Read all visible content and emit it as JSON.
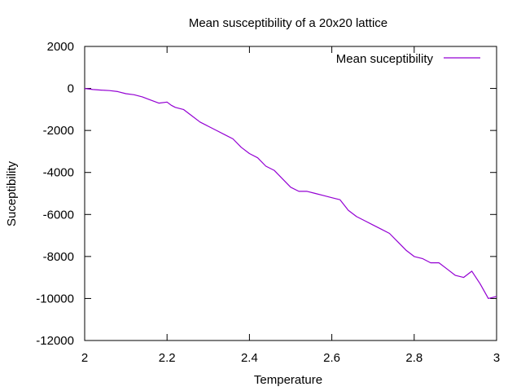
{
  "chart_data": {
    "type": "line",
    "title": "Mean susceptibility of a 20x20 lattice",
    "xlabel": "Temperature",
    "ylabel": "Suceptibility",
    "xlim": [
      2,
      3
    ],
    "ylim": [
      -12000,
      2000
    ],
    "xticks": [
      "2",
      "2.2",
      "2.4",
      "2.6",
      "2.8",
      "3"
    ],
    "yticks": [
      "2000",
      "0",
      "-2000",
      "-4000",
      "-6000",
      "-8000",
      "-10000",
      "-12000"
    ],
    "grid": false,
    "legend_position": "top-right",
    "series": [
      {
        "name": "Mean suceptibility",
        "color": "#9400d3",
        "x": [
          2.0,
          2.02,
          2.04,
          2.06,
          2.08,
          2.1,
          2.12,
          2.14,
          2.16,
          2.18,
          2.2,
          2.21,
          2.22,
          2.24,
          2.26,
          2.28,
          2.3,
          2.32,
          2.34,
          2.36,
          2.38,
          2.4,
          2.42,
          2.44,
          2.46,
          2.48,
          2.5,
          2.52,
          2.54,
          2.56,
          2.58,
          2.6,
          2.62,
          2.64,
          2.66,
          2.68,
          2.7,
          2.72,
          2.74,
          2.76,
          2.78,
          2.8,
          2.82,
          2.84,
          2.86,
          2.88,
          2.9,
          2.92,
          2.94,
          2.96,
          2.98,
          3.0
        ],
        "y": [
          0,
          -50,
          -80,
          -100,
          -150,
          -250,
          -300,
          -400,
          -550,
          -700,
          -650,
          -800,
          -900,
          -1000,
          -1300,
          -1600,
          -1800,
          -2000,
          -2200,
          -2400,
          -2800,
          -3100,
          -3300,
          -3700,
          -3900,
          -4300,
          -4700,
          -4900,
          -4900,
          -5000,
          -5100,
          -5200,
          -5300,
          -5800,
          -6100,
          -6300,
          -6500,
          -6700,
          -6900,
          -7300,
          -7700,
          -8000,
          -8100,
          -8300,
          -8300,
          -8600,
          -8900,
          -9000,
          -8700,
          -9300,
          -10000,
          -9900
        ]
      }
    ]
  }
}
